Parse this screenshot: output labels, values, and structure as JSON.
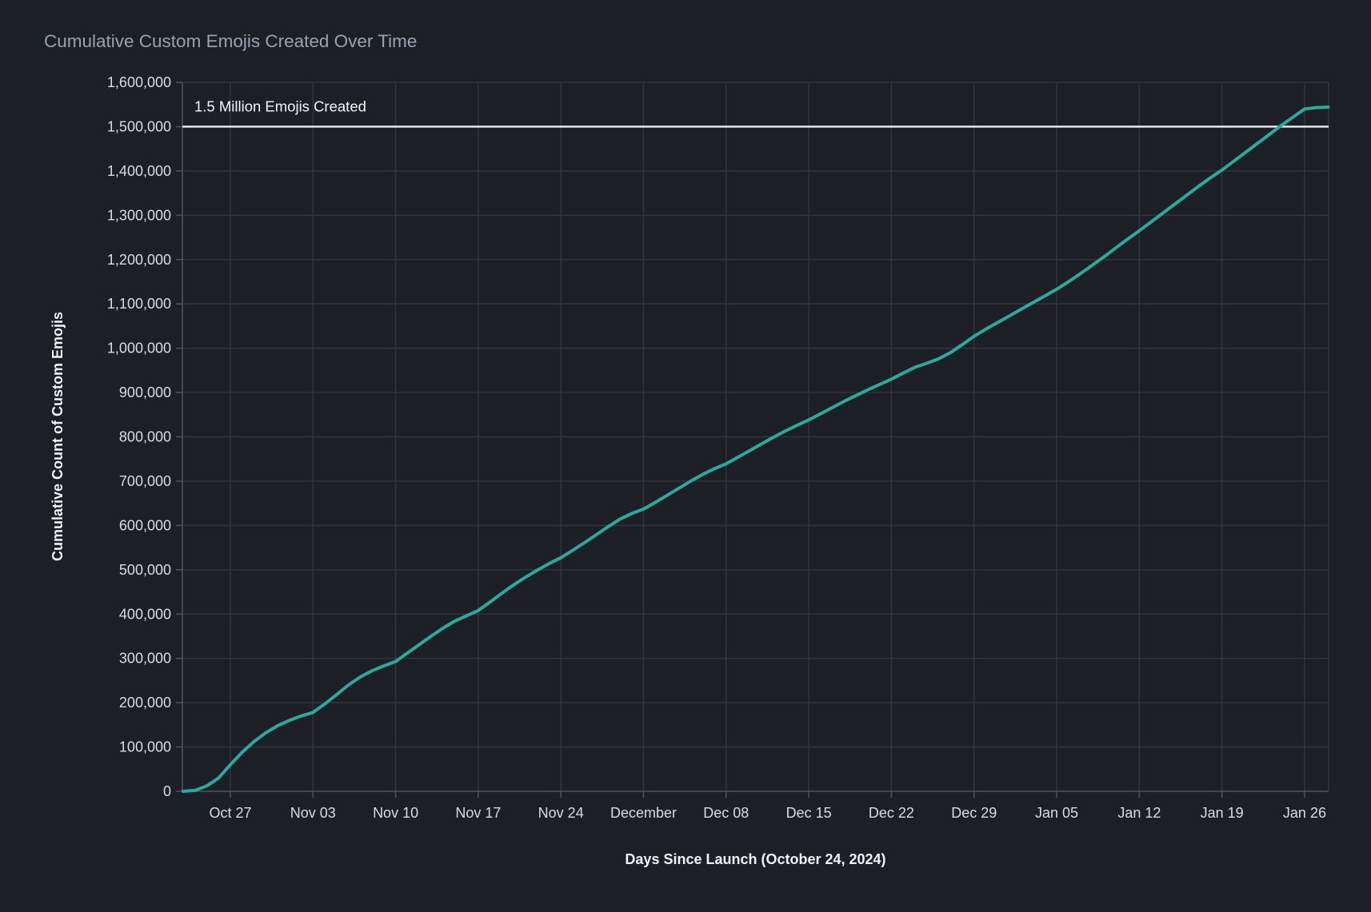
{
  "title": "Cumulative Custom Emojis Created Over Time",
  "colors": {
    "background": "#1d1f27",
    "grid": "#32353f",
    "spine": "#4d515c",
    "tick_label": "#d9dce4",
    "title": "#9aa1b0",
    "axis_label": "#f1f2f6",
    "annotation": "#f4f5f8",
    "line": "#2da99c",
    "reference_line": "#eef0f4"
  },
  "chart_data": {
    "type": "line",
    "title": "Cumulative Custom Emojis Created Over Time",
    "xlabel": "Days Since Launch (October 24, 2024)",
    "ylabel": "Cumulative Count of Custom Emojis",
    "grid": true,
    "legend": "none",
    "ylim": [
      0,
      1600000
    ],
    "y_tick_values": [
      0,
      100000,
      200000,
      300000,
      400000,
      500000,
      600000,
      700000,
      800000,
      900000,
      1000000,
      1100000,
      1200000,
      1300000,
      1400000,
      1500000,
      1600000
    ],
    "y_tick_labels": [
      "0",
      "100,000",
      "200,000",
      "300,000",
      "400,000",
      "500,000",
      "600,000",
      "700,000",
      "800,000",
      "900,000",
      "1,000,000",
      "1,100,000",
      "1,200,000",
      "1,300,000",
      "1,400,000",
      "1,500,000",
      "1,600,000"
    ],
    "x_range_days": [
      -1,
      96
    ],
    "x_ticks": [
      {
        "label": "Oct 27",
        "day": 3
      },
      {
        "label": "Nov 03",
        "day": 10
      },
      {
        "label": "Nov 10",
        "day": 17
      },
      {
        "label": "Nov 17",
        "day": 24
      },
      {
        "label": "Nov 24",
        "day": 31
      },
      {
        "label": "December",
        "day": 38
      },
      {
        "label": "Dec 08",
        "day": 45
      },
      {
        "label": "Dec 15",
        "day": 52
      },
      {
        "label": "Dec 22",
        "day": 59
      },
      {
        "label": "Dec 29",
        "day": 66
      },
      {
        "label": "Jan 05",
        "day": 73
      },
      {
        "label": "Jan 12",
        "day": 80
      },
      {
        "label": "Jan 19",
        "day": 87
      },
      {
        "label": "Jan 26",
        "day": 94
      }
    ],
    "reference_line": {
      "value": 1500000,
      "label": "1.5 Million Emojis Created"
    },
    "weekly_values": [
      {
        "date": "Oct 27",
        "value": 60000
      },
      {
        "date": "Nov 03",
        "value": 178000
      },
      {
        "date": "Nov 10",
        "value": 293000
      },
      {
        "date": "Nov 17",
        "value": 408000
      },
      {
        "date": "Nov 24",
        "value": 527000
      },
      {
        "date": "Dec 01",
        "value": 637000
      },
      {
        "date": "Dec 08",
        "value": 739000
      },
      {
        "date": "Dec 15",
        "value": 838000
      },
      {
        "date": "Dec 22",
        "value": 930000
      },
      {
        "date": "Dec 29",
        "value": 1027000
      },
      {
        "date": "Jan 05",
        "value": 1133000
      },
      {
        "date": "Jan 12",
        "value": 1265000
      },
      {
        "date": "Jan 19",
        "value": 1402000
      },
      {
        "date": "Jan 26",
        "value": 1540000
      }
    ],
    "series": [
      {
        "name": "Cumulative Custom Emojis",
        "color": "#2da99c",
        "points": [
          [
            -1,
            0
          ],
          [
            0,
            2000
          ],
          [
            1,
            12000
          ],
          [
            2,
            30000
          ],
          [
            3,
            60000
          ],
          [
            4,
            88000
          ],
          [
            5,
            112000
          ],
          [
            6,
            132000
          ],
          [
            7,
            148000
          ],
          [
            8,
            160000
          ],
          [
            9,
            170000
          ],
          [
            10,
            178000
          ],
          [
            11,
            197000
          ],
          [
            12,
            218000
          ],
          [
            13,
            240000
          ],
          [
            14,
            258000
          ],
          [
            15,
            272000
          ],
          [
            16,
            283000
          ],
          [
            17,
            293000
          ],
          [
            18,
            312000
          ],
          [
            19,
            331000
          ],
          [
            20,
            350000
          ],
          [
            21,
            368000
          ],
          [
            22,
            384000
          ],
          [
            23,
            396000
          ],
          [
            24,
            408000
          ],
          [
            25,
            427000
          ],
          [
            26,
            447000
          ],
          [
            27,
            466000
          ],
          [
            28,
            483000
          ],
          [
            29,
            499000
          ],
          [
            30,
            514000
          ],
          [
            31,
            527000
          ],
          [
            32,
            544000
          ],
          [
            33,
            561000
          ],
          [
            34,
            579000
          ],
          [
            35,
            597000
          ],
          [
            36,
            614000
          ],
          [
            37,
            627000
          ],
          [
            38,
            637000
          ],
          [
            39,
            652000
          ],
          [
            40,
            668000
          ],
          [
            41,
            684000
          ],
          [
            42,
            700000
          ],
          [
            43,
            715000
          ],
          [
            44,
            728000
          ],
          [
            45,
            739000
          ],
          [
            46,
            754000
          ],
          [
            47,
            769000
          ],
          [
            48,
            784000
          ],
          [
            49,
            799000
          ],
          [
            50,
            813000
          ],
          [
            51,
            826000
          ],
          [
            52,
            838000
          ],
          [
            53,
            852000
          ],
          [
            54,
            866000
          ],
          [
            55,
            880000
          ],
          [
            56,
            893000
          ],
          [
            57,
            906000
          ],
          [
            58,
            918000
          ],
          [
            59,
            930000
          ],
          [
            60,
            944000
          ],
          [
            61,
            957000
          ],
          [
            62,
            966000
          ],
          [
            63,
            976000
          ],
          [
            64,
            990000
          ],
          [
            65,
            1008000
          ],
          [
            66,
            1027000
          ],
          [
            67,
            1043000
          ],
          [
            68,
            1058000
          ],
          [
            69,
            1073000
          ],
          [
            70,
            1088000
          ],
          [
            71,
            1103000
          ],
          [
            72,
            1118000
          ],
          [
            73,
            1133000
          ],
          [
            74,
            1150000
          ],
          [
            75,
            1168000
          ],
          [
            76,
            1187000
          ],
          [
            77,
            1206000
          ],
          [
            78,
            1226000
          ],
          [
            79,
            1246000
          ],
          [
            80,
            1265000
          ],
          [
            81,
            1285000
          ],
          [
            82,
            1305000
          ],
          [
            83,
            1325000
          ],
          [
            84,
            1345000
          ],
          [
            85,
            1365000
          ],
          [
            86,
            1384000
          ],
          [
            87,
            1402000
          ],
          [
            88,
            1422000
          ],
          [
            89,
            1442000
          ],
          [
            90,
            1462000
          ],
          [
            91,
            1482000
          ],
          [
            92,
            1502000
          ],
          [
            93,
            1521000
          ],
          [
            94,
            1540000
          ],
          [
            95,
            1543000
          ],
          [
            96,
            1544000
          ]
        ]
      }
    ]
  }
}
